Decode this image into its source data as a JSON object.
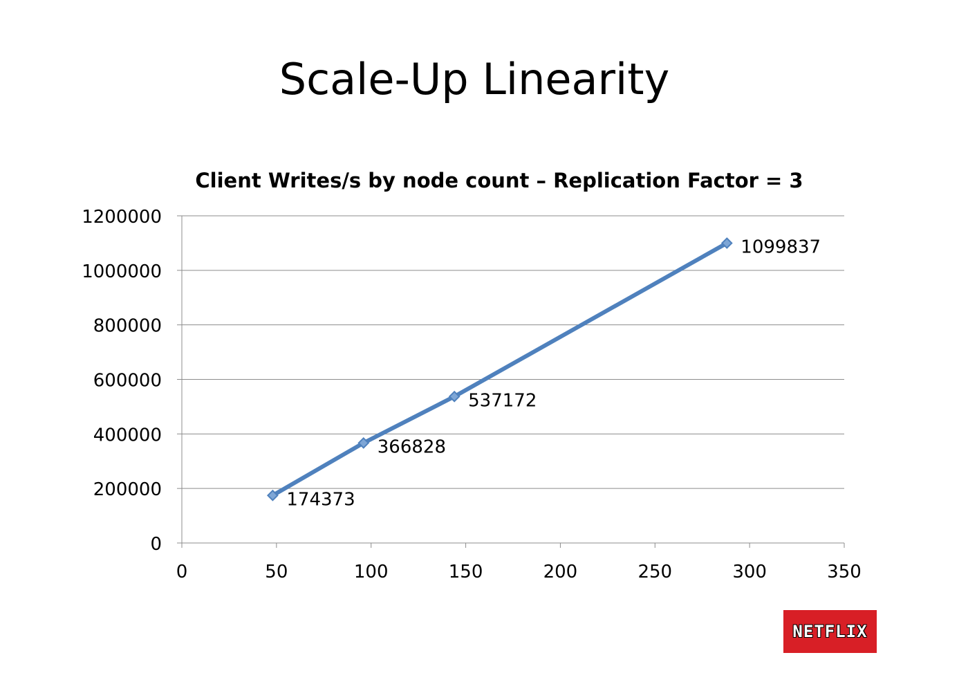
{
  "slide": {
    "title": "Scale-Up Linearity"
  },
  "logo": {
    "text": "NETFLIX",
    "bg_color": "#d81f26"
  },
  "chart_data": {
    "type": "line",
    "title": "Client Writes/s by node count – Replication Factor = 3",
    "xlabel": "",
    "ylabel": "",
    "xlim": [
      0,
      350
    ],
    "ylim": [
      0,
      1200000
    ],
    "x_ticks": [
      0,
      50,
      100,
      150,
      200,
      250,
      300,
      350
    ],
    "y_ticks": [
      0,
      200000,
      400000,
      600000,
      800000,
      1000000,
      1200000
    ],
    "grid": true,
    "legend": "none",
    "series": [
      {
        "color": "#4f81bd",
        "x": [
          48,
          96,
          144,
          288
        ],
        "y": [
          174373,
          366828,
          537172,
          1099837
        ],
        "data_labels": [
          "174373",
          "366828",
          "537172",
          "1099837"
        ]
      }
    ]
  }
}
